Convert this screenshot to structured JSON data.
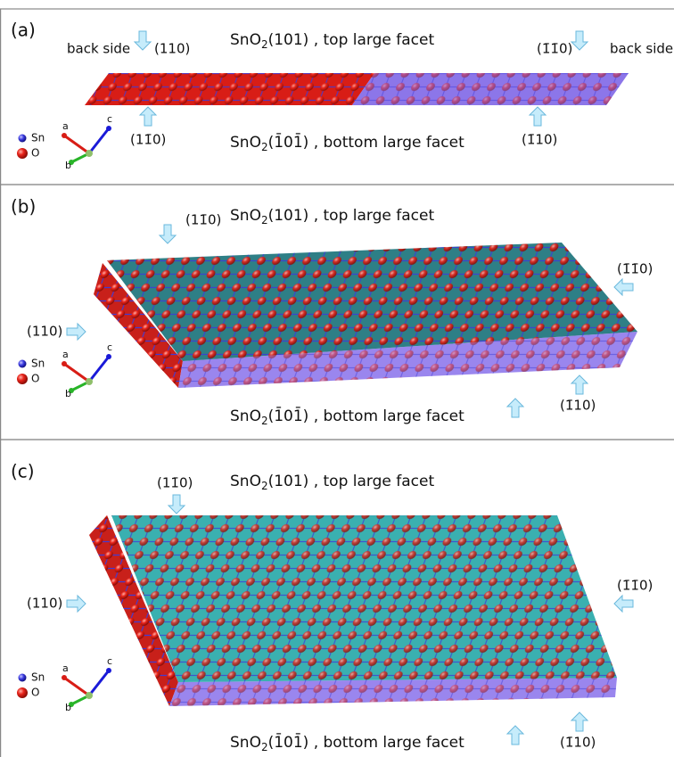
{
  "panels": [
    {
      "label": "(a)",
      "annotations": [
        "back side",
        "(110)",
        "(1̄1̄0)",
        "back side",
        "(11̄0)",
        "(1̄10)"
      ],
      "top_facet": {
        "formula": "SnO",
        "subscript": "2",
        "facet": "(101) ,  top large facet"
      },
      "bottom_facet": {
        "formula": "SnO",
        "subscript": "2",
        "facet": "(1̄01̄) ,  bottom large facet"
      },
      "legend": [
        "Sn",
        "O"
      ],
      "axes": [
        "a",
        "b",
        "c"
      ]
    },
    {
      "label": "(b)",
      "annotations": [
        "(11̄0)",
        "(1̄1̄0)",
        "(110)",
        "(1̄10)"
      ],
      "top_facet": {
        "formula": "SnO",
        "subscript": "2",
        "facet": "(101) ,  top large facet"
      },
      "bottom_facet": {
        "formula": "SnO",
        "subscript": "2",
        "facet": "(1̄01̄) ,  bottom large facet"
      },
      "legend": [
        "Sn",
        "O"
      ],
      "axes": [
        "a",
        "b",
        "c"
      ]
    },
    {
      "label": "(c)",
      "annotations": [
        "(11̄0)",
        "(1̄1̄0)",
        "(110)",
        "(1̄10)"
      ],
      "top_facet": {
        "formula": "SnO",
        "subscript": "2",
        "facet": "(101) ,  top large facet"
      },
      "bottom_facet": {
        "formula": "SnO",
        "subscript": "2",
        "facet": "(1̄01̄) ,  bottom large facet"
      },
      "legend": [
        "Sn",
        "O"
      ],
      "axes": [
        "a",
        "b",
        "c"
      ]
    }
  ]
}
